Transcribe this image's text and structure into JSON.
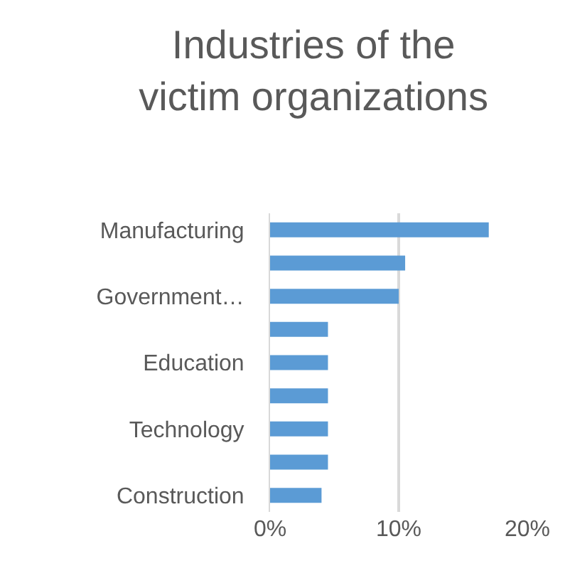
{
  "chart_data": {
    "type": "bar",
    "orientation": "horizontal",
    "title": "Industries of the victim organizations",
    "categories": [
      "Manufacturing",
      null,
      "Government…",
      null,
      "Education",
      null,
      "Technology",
      null,
      "Construction"
    ],
    "values": [
      17,
      10.5,
      10,
      4.5,
      4.5,
      4.5,
      4.5,
      4.5,
      4
    ],
    "color": "#5b9bd5",
    "xlim": [
      0,
      20
    ],
    "xticks": [
      {
        "value": 0,
        "label": "0%"
      },
      {
        "value": 10,
        "label": "10%"
      },
      {
        "value": 20,
        "label": "20%"
      }
    ],
    "grid": "x"
  }
}
